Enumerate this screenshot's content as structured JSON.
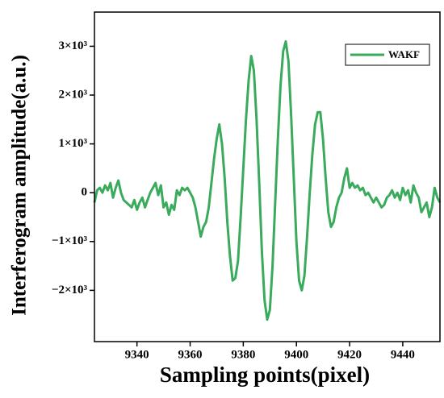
{
  "chart_data": {
    "type": "line",
    "xlabel": "Sampling points(pixel)",
    "ylabel": "Interferogram amplitude(a.u.)",
    "xlim": [
      9324,
      9454
    ],
    "ylim": [
      -3050,
      3700
    ],
    "xticks": [
      9340,
      9360,
      9380,
      9400,
      9420,
      9440
    ],
    "yticks": [
      {
        "value": -2000,
        "label": "−2×10³"
      },
      {
        "value": -1000,
        "label": "−1×10³"
      },
      0,
      {
        "value": 1000,
        "label": "1×10³"
      },
      {
        "value": 2000,
        "label": "2×10³"
      },
      {
        "value": 3000,
        "label": "3×10³"
      }
    ],
    "legend": "upper right",
    "x": [
      9324,
      9325,
      9326,
      9327,
      9328,
      9329,
      9330,
      9331,
      9332,
      9333,
      9334,
      9335,
      9336,
      9337,
      9338,
      9339,
      9340,
      9341,
      9342,
      9343,
      9344,
      9345,
      9346,
      9347,
      9348,
      9349,
      9350,
      9351,
      9352,
      9353,
      9354,
      9355,
      9356,
      9357,
      9358,
      9359,
      9360,
      9361,
      9362,
      9363,
      9364,
      9365,
      9366,
      9367,
      9368,
      9369,
      9370,
      9371,
      9372,
      9373,
      9374,
      9375,
      9376,
      9377,
      9378,
      9379,
      9380,
      9381,
      9382,
      9383,
      9384,
      9385,
      9386,
      9387,
      9388,
      9389,
      9390,
      9391,
      9392,
      9393,
      9394,
      9395,
      9396,
      9397,
      9398,
      9399,
      9400,
      9401,
      9402,
      9403,
      9404,
      9405,
      9406,
      9407,
      9408,
      9409,
      9410,
      9411,
      9412,
      9413,
      9414,
      9415,
      9416,
      9417,
      9418,
      9419,
      9420,
      9421,
      9422,
      9423,
      9424,
      9425,
      9426,
      9427,
      9428,
      9429,
      9430,
      9431,
      9432,
      9433,
      9434,
      9435,
      9436,
      9437,
      9438,
      9439,
      9440,
      9441,
      9442,
      9443,
      9444,
      9445,
      9446,
      9447,
      9448,
      9449,
      9450,
      9451,
      9452,
      9453,
      9454
    ],
    "series": [
      {
        "name": "WAKF",
        "color": "#3aaa5c",
        "values": [
          -200,
          50,
          100,
          0,
          150,
          50,
          200,
          -100,
          100,
          250,
          0,
          -150,
          -200,
          -250,
          -300,
          -150,
          -350,
          -200,
          -100,
          -300,
          -150,
          0,
          100,
          200,
          -50,
          150,
          -300,
          -200,
          -450,
          -250,
          -350,
          50,
          -50,
          100,
          50,
          100,
          0,
          -100,
          -300,
          -600,
          -900,
          -700,
          -600,
          -300,
          200,
          700,
          1100,
          1400,
          1000,
          300,
          -600,
          -1300,
          -1800,
          -1750,
          -1400,
          -500,
          500,
          1500,
          2300,
          2800,
          2500,
          1500,
          200,
          -1200,
          -2200,
          -2600,
          -2400,
          -1500,
          -200,
          1100,
          2200,
          2900,
          3100,
          2700,
          1600,
          300,
          -1000,
          -1800,
          -2000,
          -1700,
          -900,
          0,
          800,
          1400,
          1650,
          1650,
          1100,
          300,
          -400,
          -700,
          -600,
          -300,
          -100,
          0,
          300,
          500,
          100,
          200,
          100,
          150,
          50,
          100,
          -50,
          0,
          -100,
          -200,
          -100,
          -200,
          -300,
          -250,
          -100,
          -50,
          50,
          -100,
          0,
          -150,
          100,
          -50,
          50,
          -200,
          150,
          0,
          -100,
          -400,
          -300,
          -200,
          -500,
          -300,
          100,
          -100,
          -200
        ]
      }
    ]
  }
}
